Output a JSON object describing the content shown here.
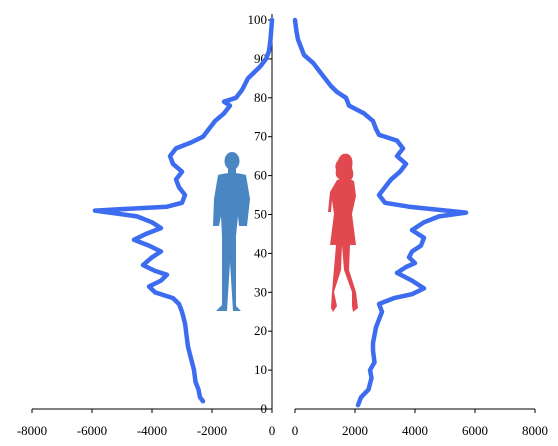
{
  "chart_data": {
    "type": "line",
    "layout": "population-pyramid",
    "title": "",
    "y_axis": {
      "ticks": [
        0,
        10,
        20,
        30,
        40,
        50,
        60,
        70,
        80,
        90,
        100
      ],
      "ylim": [
        0,
        100
      ],
      "grid": false
    },
    "left_axis": {
      "ticks": [
        -8000,
        -6000,
        -4000,
        -2000,
        0
      ],
      "tick_labels": [
        "-8000",
        "-6000",
        "-4000",
        "-2000",
        "0"
      ],
      "xlim": [
        -8000,
        0
      ]
    },
    "right_axis": {
      "ticks": [
        0,
        2000,
        4000,
        6000,
        8000
      ],
      "tick_labels": [
        "0",
        "2000",
        "4000",
        "6000",
        "8000"
      ],
      "xlim": [
        0,
        8000
      ]
    },
    "series": [
      {
        "side": "left",
        "color": "#3d6cf0",
        "points": [
          [
            -2300,
            2
          ],
          [
            -2400,
            3
          ],
          [
            -2450,
            5
          ],
          [
            -2550,
            7
          ],
          [
            -2600,
            10
          ],
          [
            -2700,
            13
          ],
          [
            -2800,
            16
          ],
          [
            -2850,
            19
          ],
          [
            -2900,
            22
          ],
          [
            -3000,
            25
          ],
          [
            -3100,
            27
          ],
          [
            -3300,
            28.5
          ],
          [
            -3900,
            30
          ],
          [
            -4100,
            31.5
          ],
          [
            -3700,
            33
          ],
          [
            -3500,
            34.5
          ],
          [
            -3900,
            35.5
          ],
          [
            -4300,
            37
          ],
          [
            -4000,
            39
          ],
          [
            -3700,
            40.5
          ],
          [
            -4100,
            42
          ],
          [
            -4600,
            43.5
          ],
          [
            -4200,
            45
          ],
          [
            -3700,
            46.5
          ],
          [
            -4000,
            48
          ],
          [
            -4500,
            49.5
          ],
          [
            -5900,
            51
          ],
          [
            -3500,
            52
          ],
          [
            -3000,
            53
          ],
          [
            -2900,
            55
          ],
          [
            -3100,
            57
          ],
          [
            -3200,
            59
          ],
          [
            -3000,
            61
          ],
          [
            -3300,
            63
          ],
          [
            -3400,
            65
          ],
          [
            -3200,
            67
          ],
          [
            -2700,
            68.5
          ],
          [
            -2300,
            70
          ],
          [
            -2100,
            72
          ],
          [
            -1900,
            74
          ],
          [
            -1600,
            76
          ],
          [
            -1400,
            78
          ],
          [
            -1600,
            79
          ],
          [
            -1200,
            80
          ],
          [
            -1000,
            82
          ],
          [
            -800,
            85
          ],
          [
            -400,
            88
          ],
          [
            -200,
            90
          ],
          [
            -100,
            92
          ],
          [
            -50,
            95
          ],
          [
            -20,
            98
          ],
          [
            0,
            100
          ]
        ]
      },
      {
        "side": "right",
        "color": "#3d6cf0",
        "points": [
          [
            2100,
            1
          ],
          [
            2200,
            3
          ],
          [
            2450,
            5
          ],
          [
            2550,
            8
          ],
          [
            2500,
            10
          ],
          [
            2650,
            12
          ],
          [
            2600,
            15
          ],
          [
            2600,
            17
          ],
          [
            2650,
            19
          ],
          [
            2700,
            21
          ],
          [
            2800,
            23
          ],
          [
            2900,
            25
          ],
          [
            2800,
            27
          ],
          [
            3300,
            28.5
          ],
          [
            3900,
            29.5
          ],
          [
            4300,
            31
          ],
          [
            3900,
            33
          ],
          [
            3400,
            35
          ],
          [
            3700,
            36.5
          ],
          [
            4000,
            37.5
          ],
          [
            3800,
            39
          ],
          [
            3900,
            40.5
          ],
          [
            4200,
            42
          ],
          [
            4300,
            44
          ],
          [
            3900,
            46
          ],
          [
            4300,
            48
          ],
          [
            4800,
            49.5
          ],
          [
            5700,
            50.5
          ],
          [
            3800,
            52
          ],
          [
            3000,
            53
          ],
          [
            2800,
            55
          ],
          [
            3000,
            57
          ],
          [
            3200,
            59
          ],
          [
            3500,
            61
          ],
          [
            3700,
            63
          ],
          [
            3400,
            65
          ],
          [
            3600,
            67
          ],
          [
            3400,
            69
          ],
          [
            2800,
            70.5
          ],
          [
            2700,
            72
          ],
          [
            2600,
            74
          ],
          [
            2300,
            76
          ],
          [
            1800,
            78
          ],
          [
            1700,
            80
          ],
          [
            1400,
            81.5
          ],
          [
            1200,
            83
          ],
          [
            1000,
            85
          ],
          [
            800,
            87
          ],
          [
            600,
            89
          ],
          [
            300,
            91
          ],
          [
            200,
            93
          ],
          [
            100,
            95
          ],
          [
            50,
            97
          ],
          [
            0,
            100
          ]
        ]
      }
    ]
  },
  "decorations": {
    "male_figure": {
      "icon": "male-silhouette-icon",
      "color": "#4a86c1"
    },
    "female_figure": {
      "icon": "female-silhouette-icon",
      "color": "#e2484f"
    }
  }
}
